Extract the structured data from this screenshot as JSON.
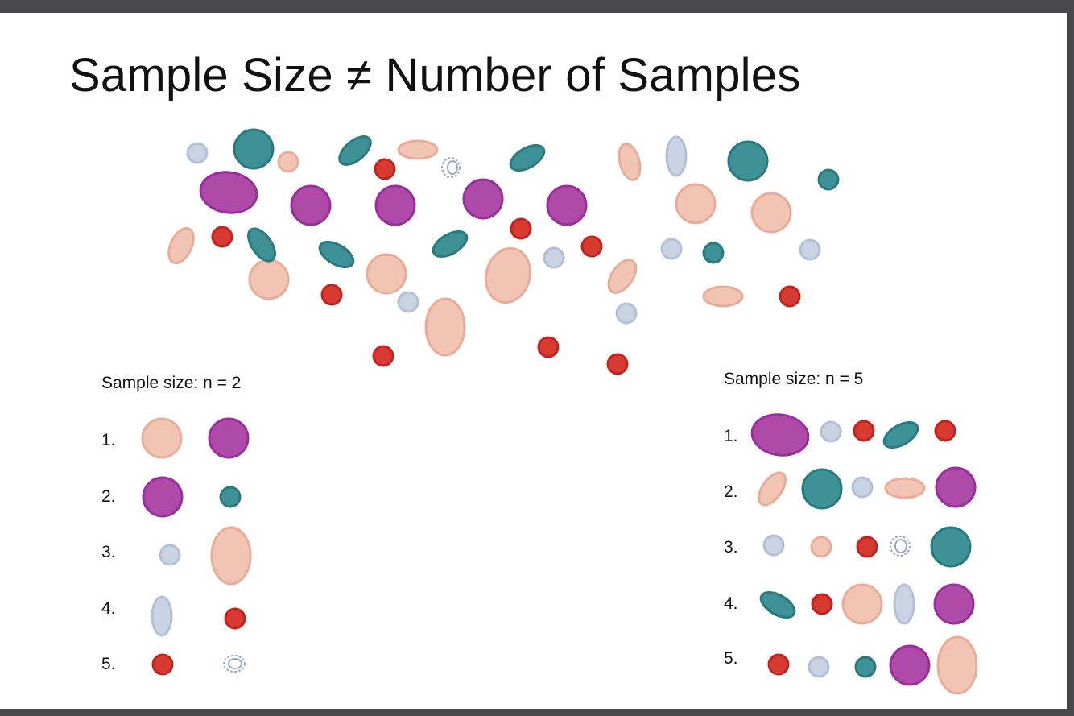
{
  "slide": {
    "title": "Sample Size ≠ Number of Samples"
  },
  "left_panel": {
    "label": "Sample size: n = 2",
    "rows": [
      "1.",
      "2.",
      "3.",
      "4.",
      "5."
    ]
  },
  "right_panel": {
    "label": "Sample size: n = 5",
    "rows": [
      "1.",
      "2.",
      "3.",
      "4.",
      "5."
    ]
  },
  "colors": {
    "pink": "#f2c4b4",
    "purple": "#b04aa8",
    "teal": "#3e9196",
    "red": "#d83a32",
    "lightblue": "#c9d3e4",
    "background": "#ffffff",
    "frame": "#48484a"
  },
  "shape_types": [
    "pink-oval",
    "purple-oval",
    "teal-oval",
    "red-dot",
    "lightblue-oval",
    "coil-icon"
  ]
}
